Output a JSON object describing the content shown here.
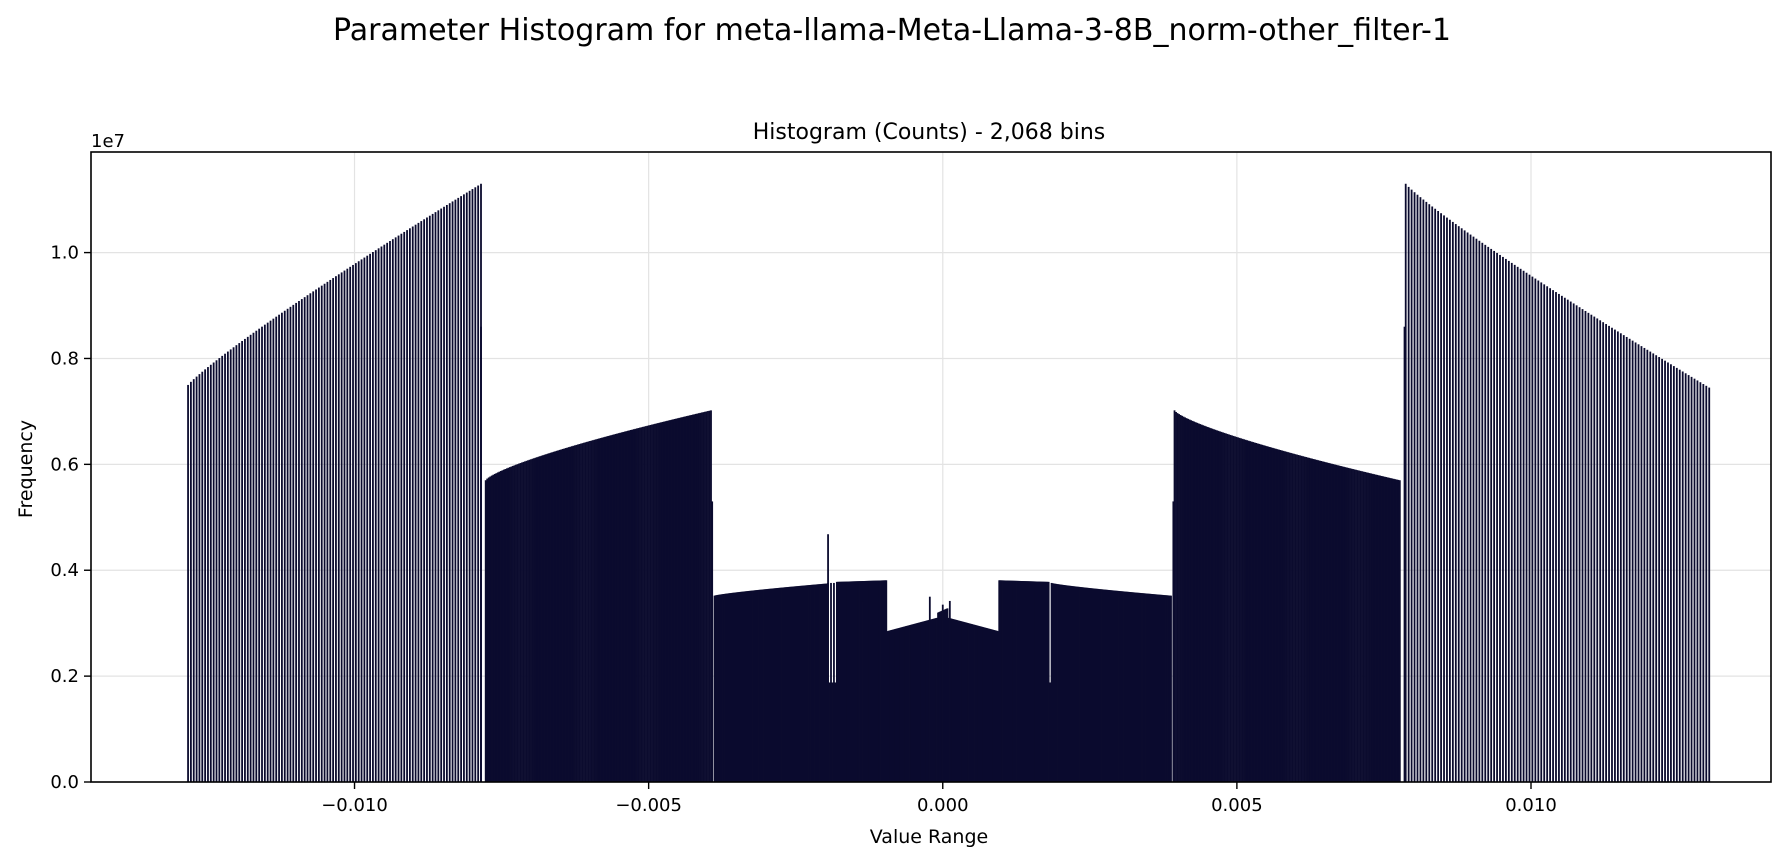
{
  "figure": {
    "suptitle": "Parameter Histogram for meta-llama-Meta-Llama-3-8B_norm-other_filter-1"
  },
  "chart_data": {
    "type": "bar",
    "title": "Histogram (Counts) - 2,068 bins",
    "xlabel": "Value Range",
    "ylabel": "Frequency",
    "y_offset_label": "1e7",
    "xlim": [
      -0.01448,
      0.01408
    ],
    "ylim": [
      0,
      11.9
    ],
    "y_unit": "1e7 counts",
    "grid": true,
    "bar_color": "#0b0b2e",
    "x_ticks": [
      -0.01,
      -0.005,
      0.0,
      0.005,
      0.01
    ],
    "x_tick_labels": [
      "−0.010",
      "−0.005",
      "0.000",
      "0.005",
      "0.010"
    ],
    "y_ticks": [
      0.0,
      2.0,
      4.0,
      6.0,
      8.0,
      10.0
    ],
    "y_tick_labels": [
      "0.0",
      "0.2",
      "0.4",
      "0.6",
      "0.8",
      "1.0"
    ],
    "segments": [
      {
        "x_start": -0.01283,
        "x_end": -0.00785,
        "n_bars": 104,
        "y_start": 7.5,
        "y_end": 11.3,
        "curve": 0.9
      },
      {
        "x_start": -0.00785,
        "x_end": -0.00785,
        "n_bars": 1,
        "y_start": 8.6,
        "y_end": 8.6,
        "curve": 1
      },
      {
        "x_start": -0.00777,
        "x_end": -0.00394,
        "n_bars": 150,
        "y_start": 5.7,
        "y_end": 7.02,
        "curve": 0.75
      },
      {
        "x_start": -0.00392,
        "x_end": -0.00392,
        "n_bars": 1,
        "y_start": 5.3,
        "y_end": 5.3,
        "curve": 1
      },
      {
        "x_start": -0.00388,
        "x_end": -0.00196,
        "n_bars": 110,
        "y_start": 3.52,
        "y_end": 3.75,
        "curve": 0.8
      },
      {
        "x_start": -0.00195,
        "x_end": -0.00185,
        "n_bars": 3,
        "y_start": 3.76,
        "y_end": 3.76,
        "curve": 1
      },
      {
        "x_start": -0.0018,
        "x_end": -0.00096,
        "n_bars": 55,
        "y_start": 3.78,
        "y_end": 3.81,
        "curve": 1
      },
      {
        "x_start": -0.00094,
        "x_end": -0.0001,
        "n_bars": 60,
        "y_start": 2.85,
        "y_end": 3.1,
        "curve": 1
      },
      {
        "x_start": -8e-05,
        "x_end": 8e-05,
        "n_bars": 12,
        "y_start": 3.2,
        "y_end": 3.28,
        "curve": 1
      },
      {
        "x_start": 0.0001,
        "x_end": 0.00094,
        "n_bars": 60,
        "y_start": 3.1,
        "y_end": 2.85,
        "curve": 1
      },
      {
        "x_start": 0.00096,
        "x_end": 0.0018,
        "n_bars": 55,
        "y_start": 3.81,
        "y_end": 3.78,
        "curve": 1
      },
      {
        "x_start": 0.00185,
        "x_end": 0.00388,
        "n_bars": 115,
        "y_start": 3.76,
        "y_end": 3.52,
        "curve": 0.8
      },
      {
        "x_start": 0.00392,
        "x_end": 0.00392,
        "n_bars": 1,
        "y_start": 5.3,
        "y_end": 5.3,
        "curve": 1
      },
      {
        "x_start": 0.00394,
        "x_end": 0.00777,
        "n_bars": 150,
        "y_start": 7.02,
        "y_end": 5.7,
        "curve": 0.75
      },
      {
        "x_start": 0.00785,
        "x_end": 0.00785,
        "n_bars": 1,
        "y_start": 8.6,
        "y_end": 8.6,
        "curve": 1
      },
      {
        "x_start": 0.00787,
        "x_end": 0.01303,
        "n_bars": 104,
        "y_start": 11.3,
        "y_end": 7.45,
        "curve": 0.9
      }
    ],
    "spikes": [
      {
        "x": -0.00195,
        "y": 4.68
      },
      {
        "x": -0.00137,
        "y": 3.41
      },
      {
        "x": -0.00022,
        "y": 3.5
      },
      {
        "x": 0.0,
        "y": 3.35
      },
      {
        "x": 0.00012,
        "y": 3.42
      }
    ],
    "background_fills": [
      {
        "x_start": -0.00196,
        "x_end": -0.00094,
        "y": 1.88
      },
      {
        "x_start": 0.00094,
        "x_end": 0.00196,
        "y": 1.88
      },
      {
        "x_start": -0.00388,
        "x_end": 0.00388,
        "y": 1.85
      }
    ]
  }
}
